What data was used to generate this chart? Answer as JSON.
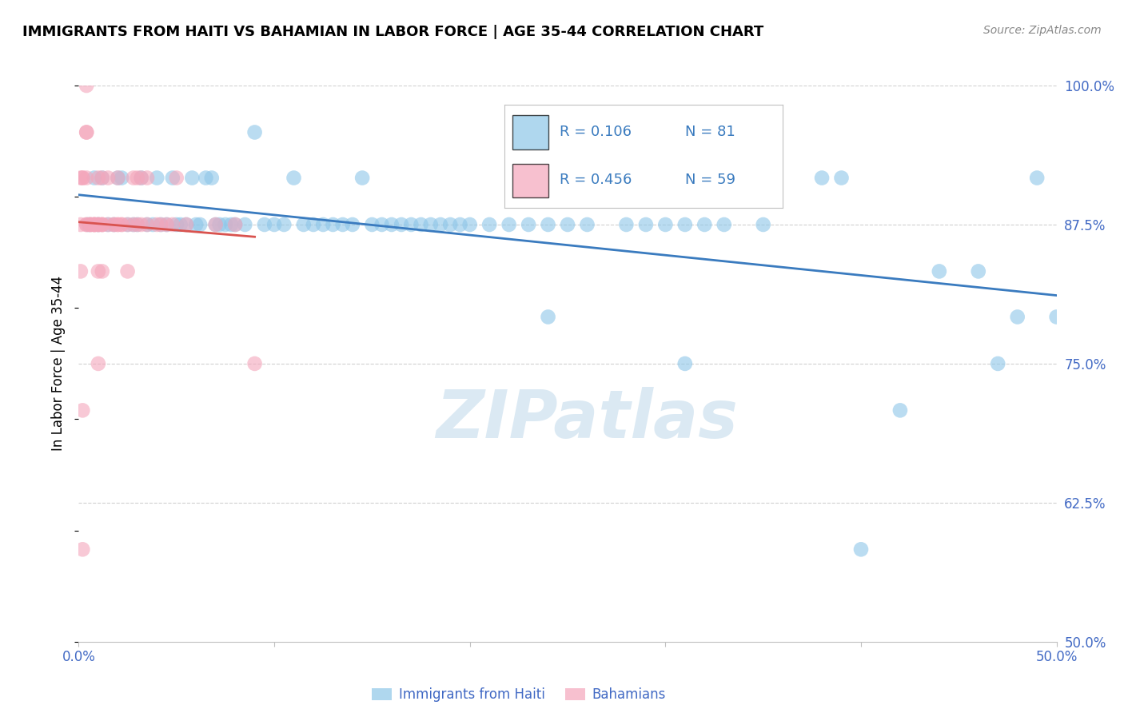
{
  "title": "IMMIGRANTS FROM HAITI VS BAHAMIAN IN LABOR FORCE | AGE 35-44 CORRELATION CHART",
  "source": "Source: ZipAtlas.com",
  "ylabel": "In Labor Force | Age 35-44",
  "xlim": [
    0.0,
    0.5
  ],
  "ylim": [
    0.5,
    1.0
  ],
  "legend_r1": "0.106",
  "legend_n1": "81",
  "legend_r2": "0.456",
  "legend_n2": "59",
  "color_blue": "#8dc6e8",
  "color_pink": "#f4a6bb",
  "color_blue_line": "#3a7bbf",
  "color_pink_line": "#d9534f",
  "legend_label1": "Immigrants from Haiti",
  "legend_label2": "Bahamians",
  "watermark": "ZIPatlas",
  "blue_x": [
    0.005,
    0.008,
    0.01,
    0.012,
    0.015,
    0.018,
    0.02,
    0.022,
    0.025,
    0.028,
    0.03,
    0.032,
    0.035,
    0.038,
    0.04,
    0.042,
    0.045,
    0.048,
    0.05,
    0.052,
    0.055,
    0.058,
    0.06,
    0.062,
    0.065,
    0.068,
    0.07,
    0.072,
    0.075,
    0.078,
    0.08,
    0.085,
    0.09,
    0.095,
    0.1,
    0.105,
    0.11,
    0.115,
    0.12,
    0.125,
    0.13,
    0.135,
    0.14,
    0.145,
    0.15,
    0.155,
    0.16,
    0.165,
    0.17,
    0.175,
    0.18,
    0.185,
    0.19,
    0.195,
    0.2,
    0.21,
    0.22,
    0.23,
    0.24,
    0.25,
    0.26,
    0.27,
    0.28,
    0.29,
    0.3,
    0.31,
    0.32,
    0.33,
    0.35,
    0.38,
    0.39,
    0.4,
    0.42,
    0.44,
    0.46,
    0.47,
    0.48,
    0.49,
    0.5,
    0.24,
    0.31
  ],
  "blue_y": [
    0.875,
    0.917,
    0.875,
    0.917,
    0.875,
    0.875,
    0.917,
    0.917,
    0.875,
    0.875,
    0.875,
    0.917,
    0.875,
    0.875,
    0.917,
    0.875,
    0.875,
    0.917,
    0.875,
    0.875,
    0.875,
    0.917,
    0.875,
    0.875,
    0.917,
    0.917,
    0.875,
    0.875,
    0.875,
    0.875,
    0.875,
    0.875,
    0.958,
    0.875,
    0.875,
    0.875,
    0.917,
    0.875,
    0.875,
    0.875,
    0.875,
    0.875,
    0.875,
    0.917,
    0.875,
    0.875,
    0.875,
    0.875,
    0.875,
    0.875,
    0.875,
    0.875,
    0.875,
    0.875,
    0.875,
    0.875,
    0.875,
    0.875,
    0.875,
    0.875,
    0.875,
    0.917,
    0.875,
    0.875,
    0.875,
    0.875,
    0.875,
    0.875,
    0.875,
    0.917,
    0.917,
    0.583,
    0.708,
    0.833,
    0.833,
    0.75,
    0.792,
    0.917,
    0.792,
    0.792,
    0.75
  ],
  "pink_x": [
    0.002,
    0.004,
    0.004,
    0.004,
    0.004,
    0.004,
    0.004,
    0.001,
    0.001,
    0.001,
    0.006,
    0.006,
    0.006,
    0.002,
    0.002,
    0.008,
    0.008,
    0.008,
    0.008,
    0.015,
    0.015,
    0.01,
    0.01,
    0.018,
    0.018,
    0.012,
    0.02,
    0.02,
    0.022,
    0.012,
    0.025,
    0.022,
    0.03,
    0.025,
    0.012,
    0.032,
    0.028,
    0.028,
    0.035,
    0.04,
    0.042,
    0.045,
    0.05,
    0.055,
    0.048,
    0.07,
    0.08,
    0.09,
    0.02,
    0.01,
    0.01,
    0.03,
    0.01,
    0.01,
    0.002,
    0.012,
    0.032,
    0.035,
    0.012
  ],
  "pink_y": [
    0.583,
    0.875,
    0.875,
    0.917,
    0.958,
    0.958,
    1.0,
    0.833,
    0.875,
    0.917,
    0.875,
    0.875,
    0.875,
    0.917,
    0.917,
    0.875,
    0.875,
    0.875,
    0.875,
    0.917,
    0.875,
    0.875,
    0.917,
    0.875,
    0.875,
    0.875,
    0.875,
    0.917,
    0.875,
    0.833,
    0.875,
    0.875,
    0.917,
    0.833,
    0.875,
    0.917,
    0.875,
    0.917,
    0.875,
    0.875,
    0.875,
    0.875,
    0.917,
    0.875,
    0.875,
    0.875,
    0.875,
    0.75,
    0.875,
    0.75,
    0.833,
    0.875,
    0.875,
    0.875,
    0.708,
    0.917,
    0.875,
    0.917,
    0.875
  ]
}
